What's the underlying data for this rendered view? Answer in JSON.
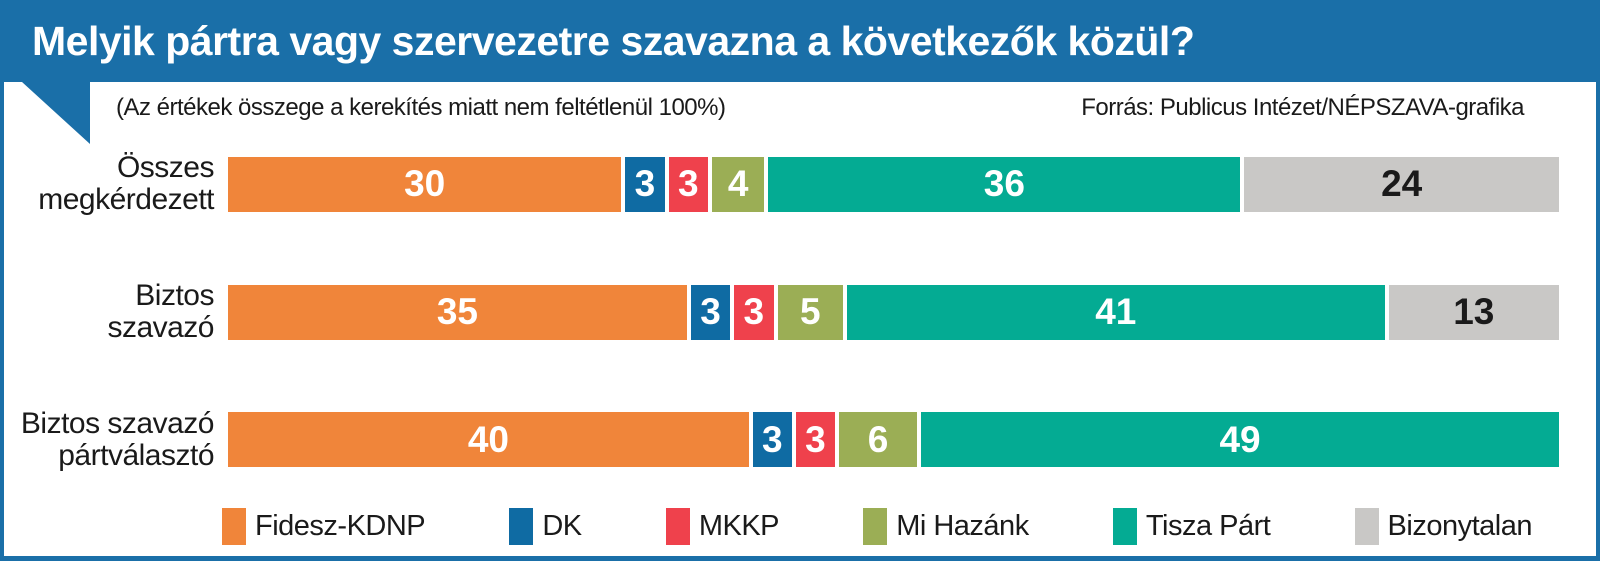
{
  "title": "Melyik pártra vagy szervezetre szavazna a következők közül?",
  "subtitle": "(Az értékek összege a kerekítés miatt nem feltétlenül 100%)",
  "source": "Forrás: Publicus Intézet/NÉPSZAVA-grafika",
  "colors": {
    "accent_blue": "#1A6FA8",
    "background": "#FFFFFF",
    "text": "#1A1A1A"
  },
  "chart_data": {
    "type": "bar",
    "orientation": "horizontal",
    "stacked": true,
    "title": "Melyik pártra vagy szervezetre szavazna a következők közül?",
    "categories": [
      "Összes megkérdezett",
      "Biztos szavazó",
      "Biztos szavazó pártválasztó"
    ],
    "category_lines": [
      [
        "Összes",
        "megkérdezett"
      ],
      [
        "Biztos",
        "szavazó"
      ],
      [
        "Biztos szavazó",
        "pártválasztó"
      ]
    ],
    "series": [
      {
        "name": "Fidesz-KDNP",
        "slug": "fidesz-kdnp",
        "color": "#F0853A",
        "text_color": "#FFFFFF",
        "values": [
          30,
          35,
          40
        ]
      },
      {
        "name": "DK",
        "slug": "dk",
        "color": "#0F6BA3",
        "text_color": "#FFFFFF",
        "values": [
          3,
          3,
          3
        ]
      },
      {
        "name": "MKKP",
        "slug": "mkkp",
        "color": "#EF414C",
        "text_color": "#FFFFFF",
        "values": [
          3,
          3,
          3
        ]
      },
      {
        "name": "Mi Hazánk",
        "slug": "mi-hazank",
        "color": "#9BAE55",
        "text_color": "#FFFFFF",
        "values": [
          4,
          5,
          6
        ]
      },
      {
        "name": "Tisza Párt",
        "slug": "tisza-part",
        "color": "#04AB93",
        "text_color": "#FFFFFF",
        "values": [
          36,
          41,
          49
        ]
      },
      {
        "name": "Bizonytalan",
        "slug": "bizonytalan",
        "color": "#C9C8C6",
        "text_color": "#1A1A1A",
        "values": [
          24,
          13,
          0
        ]
      }
    ],
    "xlim": [
      0,
      100
    ],
    "value_labels": "inside-center",
    "grid": false,
    "legend_position": "bottom"
  }
}
